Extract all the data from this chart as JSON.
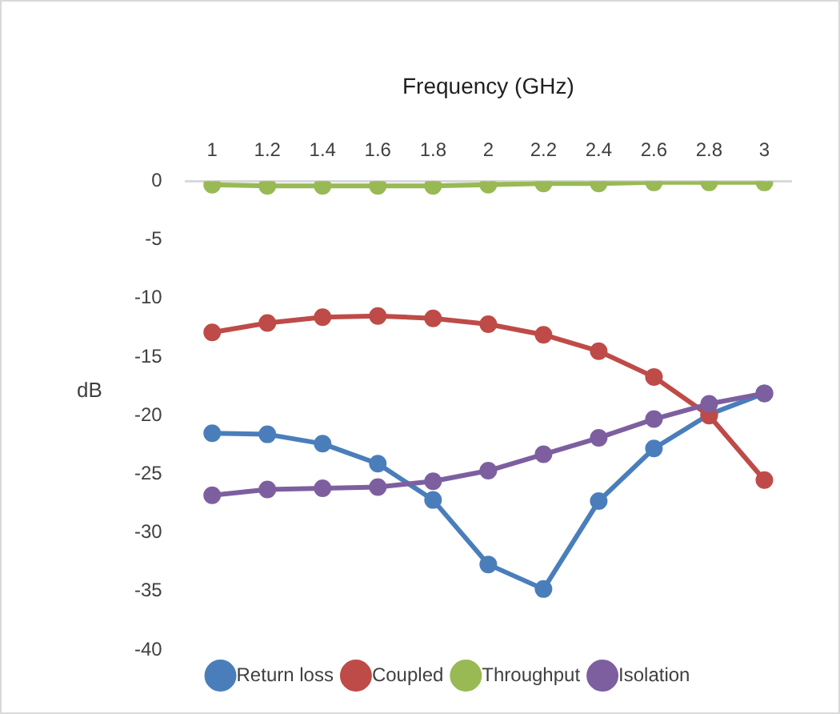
{
  "chart_data": {
    "type": "line",
    "xlabel": "Frequency (GHz)",
    "ylabel": "dB",
    "categories": [
      "1",
      "1.2",
      "1.4",
      "1.6",
      "1.8",
      "2",
      "2.2",
      "2.4",
      "2.6",
      "2.8",
      "3"
    ],
    "series": [
      {
        "name": "Return loss",
        "color": "#4a7ebb",
        "values": [
          -21.5,
          -21.6,
          -22.4,
          -24.1,
          -27.2,
          -32.7,
          -34.8,
          -27.3,
          -22.8,
          -19.9,
          -18.1
        ]
      },
      {
        "name": "Coupled",
        "color": "#be4b48",
        "values": [
          -12.9,
          -12.1,
          -11.6,
          -11.5,
          -11.7,
          -12.2,
          -13.1,
          -14.5,
          -16.7,
          -20.0,
          -25.5
        ]
      },
      {
        "name": "Throughput",
        "color": "#98b954",
        "values": [
          -0.3,
          -0.4,
          -0.4,
          -0.4,
          -0.4,
          -0.3,
          -0.2,
          -0.2,
          -0.1,
          -0.1,
          -0.1
        ]
      },
      {
        "name": "Isolation",
        "color": "#7d5fa0",
        "values": [
          -26.8,
          -26.3,
          -26.2,
          -26.1,
          -25.6,
          -24.7,
          -23.3,
          -21.9,
          -20.3,
          -19.0,
          -18.1
        ]
      }
    ],
    "ylim": [
      -40,
      0
    ],
    "yticks": [
      0,
      -5,
      -10,
      -15,
      -20,
      -25,
      -30,
      -35,
      -40
    ],
    "grid": false,
    "legend": "bottom",
    "marker": "circle",
    "line_style": "solid"
  }
}
